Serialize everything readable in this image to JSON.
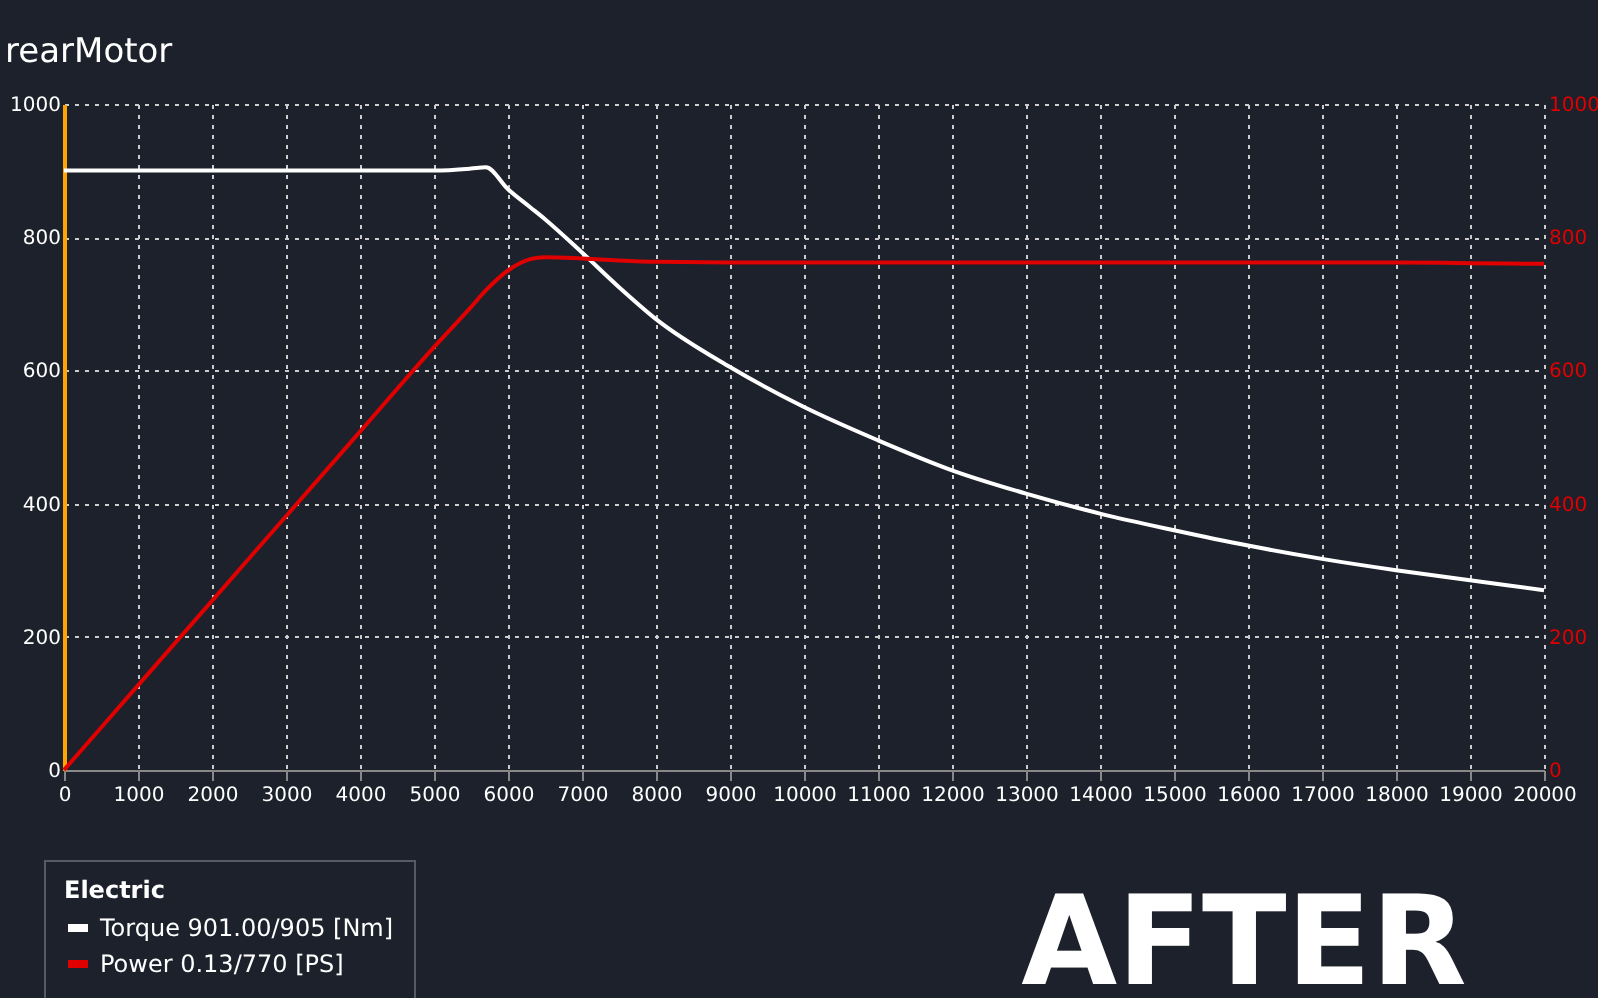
{
  "chart_data": {
    "type": "line",
    "title": "rearMotor",
    "legend_title": "Electric",
    "annotations": [
      "AFTER"
    ],
    "x": [
      0,
      1000,
      2000,
      3000,
      4000,
      5000,
      5500,
      5700,
      6000,
      6300,
      6500,
      7000,
      7500,
      8000,
      9000,
      10000,
      11000,
      12000,
      13000,
      14000,
      15000,
      16000,
      17000,
      18000,
      19000,
      20000
    ],
    "series": [
      {
        "name": "Torque 901.00/905 [Nm]",
        "color": "#ffffff",
        "values": [
          900,
          900,
          900,
          900,
          900,
          900,
          903,
          905,
          872,
          845,
          827,
          777,
          725,
          677,
          605,
          545,
          495,
          450,
          415,
          385,
          360,
          337,
          317,
          300,
          285,
          270
        ]
      },
      {
        "name": "Power 0.13/770 [PS]",
        "color": "#e00000",
        "axis": "y2",
        "values": [
          0,
          127,
          254,
          381,
          508,
          635,
          695,
          720,
          750,
          767,
          770,
          768,
          765,
          763,
          762,
          762,
          762,
          762,
          762,
          762,
          762,
          762,
          762,
          762,
          761,
          760
        ]
      }
    ],
    "xlim": [
      0,
      20000
    ],
    "xticks": [
      0,
      1000,
      2000,
      3000,
      4000,
      5000,
      6000,
      7000,
      8000,
      9000,
      10000,
      11000,
      12000,
      13000,
      14000,
      15000,
      16000,
      17000,
      18000,
      19000,
      20000
    ],
    "ylim": [
      0,
      1000
    ],
    "yticks": [
      0,
      200,
      400,
      600,
      800,
      1000
    ],
    "y2lim": [
      0,
      1000
    ],
    "y2ticks": [
      0,
      200,
      400,
      600,
      800,
      1000
    ],
    "grid": true,
    "legend": "bottom left"
  }
}
